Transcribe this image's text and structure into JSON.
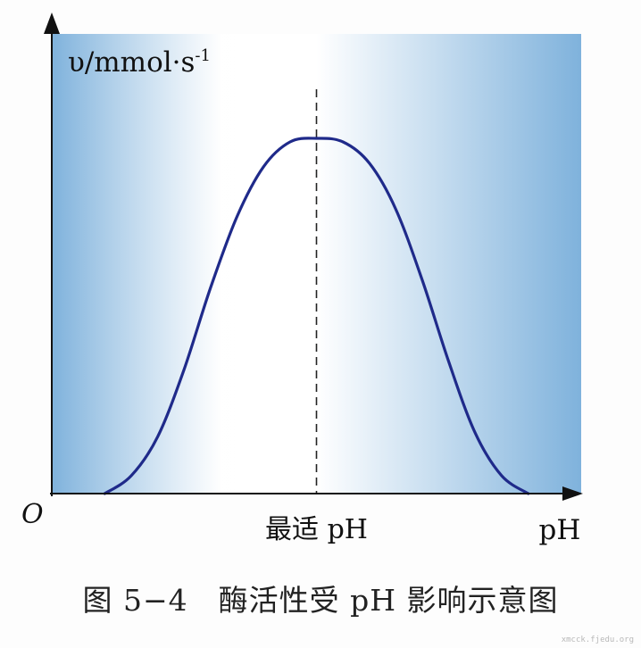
{
  "figure_caption": "图 5−4　酶活性受 pH 影响示意图",
  "watermark": "xmcck.fjedu.org",
  "colors": {
    "curve": "#1f2a8a",
    "panel_edge": "#7fb2dc",
    "panel_center": "#ffffff",
    "axis": "#111111"
  },
  "chart_data": {
    "type": "line",
    "title": "",
    "ylabel": "υ/mmol·s",
    "ylabel_superscript": "-1",
    "xlabel": "pH",
    "origin_label": "O",
    "optimum_label": "最适 pH",
    "xlim": [
      0,
      1
    ],
    "ylim": [
      0,
      1
    ],
    "grid": false,
    "legend": "none",
    "optimum_x": 0.5,
    "series": [
      {
        "x": [
          0.1,
          0.15,
          0.2,
          0.25,
          0.3,
          0.35,
          0.4,
          0.45,
          0.5,
          0.55,
          0.6,
          0.65,
          0.7,
          0.75,
          0.8,
          0.85,
          0.9
        ],
        "values": [
          0.0,
          0.05,
          0.16,
          0.35,
          0.58,
          0.78,
          0.92,
          0.99,
          1.0,
          0.99,
          0.93,
          0.8,
          0.6,
          0.37,
          0.17,
          0.05,
          0.0
        ]
      }
    ]
  }
}
